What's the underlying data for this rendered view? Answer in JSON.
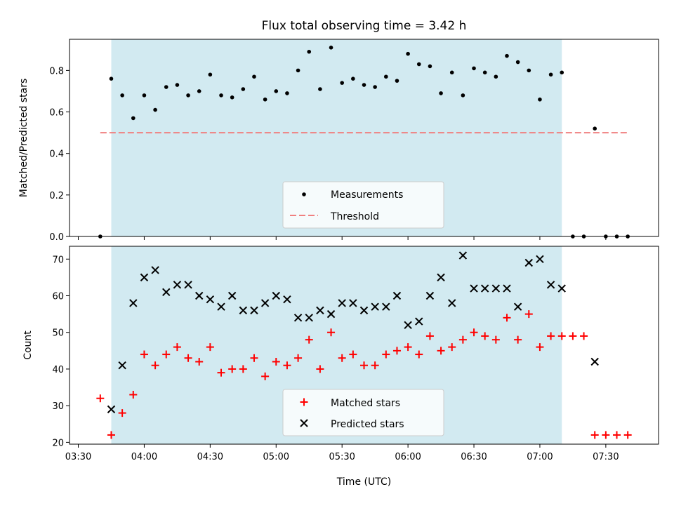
{
  "chart_data": [
    {
      "type": "scatter",
      "title": "Flux total observing time = 3.42 h",
      "xlabel": "",
      "ylabel": "Matched/Predicted stars",
      "xlim": [
        "03:26",
        "07:54"
      ],
      "ylim": [
        0,
        0.95
      ],
      "yticks": [
        0.0,
        0.2,
        0.4,
        0.6,
        0.8
      ],
      "ytick_labels": [
        "0.0",
        "0.2",
        "0.4",
        "0.6",
        "0.8"
      ],
      "shaded_region": {
        "x": [
          "03:45",
          "07:10"
        ],
        "color": "#add8e6"
      },
      "threshold": {
        "name": "Threshold",
        "y": 0.5,
        "x": [
          "03:40",
          "07:40"
        ],
        "color": "#f08080",
        "style": "dashed"
      },
      "legend": {
        "placement": "lower center",
        "entries": [
          "Measurements",
          "Threshold"
        ]
      },
      "series": [
        {
          "name": "Measurements",
          "marker": "dot",
          "color": "#000000",
          "x": [
            "03:40",
            "03:45",
            "03:50",
            "03:55",
            "04:00",
            "04:05",
            "04:10",
            "04:15",
            "04:20",
            "04:25",
            "04:30",
            "04:35",
            "04:40",
            "04:45",
            "04:50",
            "04:55",
            "05:00",
            "05:05",
            "05:10",
            "05:15",
            "05:20",
            "05:25",
            "05:30",
            "05:35",
            "05:40",
            "05:45",
            "05:50",
            "05:55",
            "06:00",
            "06:05",
            "06:10",
            "06:15",
            "06:20",
            "06:25",
            "06:30",
            "06:35",
            "06:40",
            "06:45",
            "06:50",
            "06:55",
            "07:00",
            "07:05",
            "07:10",
            "07:15",
            "07:20",
            "07:25",
            "07:30",
            "07:35",
            "07:40"
          ],
          "y": [
            0.0,
            0.76,
            0.68,
            0.57,
            0.68,
            0.61,
            0.72,
            0.73,
            0.68,
            0.7,
            0.78,
            0.68,
            0.67,
            0.71,
            0.77,
            0.66,
            0.7,
            0.69,
            0.8,
            0.89,
            0.71,
            0.91,
            0.74,
            0.76,
            0.73,
            0.72,
            0.77,
            0.75,
            0.88,
            0.83,
            0.82,
            0.69,
            0.79,
            0.68,
            0.81,
            0.79,
            0.77,
            0.87,
            0.84,
            0.8,
            0.66,
            0.78,
            0.79,
            0.0,
            0.0,
            0.52,
            0.0,
            0.0,
            0.0
          ]
        }
      ]
    },
    {
      "type": "scatter",
      "title": "",
      "xlabel": "Time (UTC)",
      "ylabel": "Count",
      "xlim": [
        "03:26",
        "07:54"
      ],
      "ylim": [
        19.5,
        73.5
      ],
      "xticks": [
        "03:30",
        "04:00",
        "04:30",
        "05:00",
        "05:30",
        "06:00",
        "06:30",
        "07:00",
        "07:30"
      ],
      "yticks": [
        20,
        30,
        40,
        50,
        60,
        70
      ],
      "ytick_labels": [
        "20",
        "30",
        "40",
        "50",
        "60",
        "70"
      ],
      "shaded_region": {
        "x": [
          "03:45",
          "07:10"
        ],
        "color": "#add8e6"
      },
      "legend": {
        "placement": "lower center",
        "entries": [
          "Matched stars",
          "Predicted stars"
        ]
      },
      "series": [
        {
          "name": "Matched stars",
          "marker": "plus",
          "color": "#ff0000",
          "x": [
            "03:40",
            "03:45",
            "03:50",
            "03:55",
            "04:00",
            "04:05",
            "04:10",
            "04:15",
            "04:20",
            "04:25",
            "04:30",
            "04:35",
            "04:40",
            "04:45",
            "04:50",
            "04:55",
            "05:00",
            "05:05",
            "05:10",
            "05:15",
            "05:20",
            "05:25",
            "05:30",
            "05:35",
            "05:40",
            "05:45",
            "05:50",
            "05:55",
            "06:00",
            "06:05",
            "06:10",
            "06:15",
            "06:20",
            "06:25",
            "06:30",
            "06:35",
            "06:40",
            "06:45",
            "06:50",
            "06:55",
            "07:00",
            "07:05",
            "07:10",
            "07:15",
            "07:20",
            "07:25",
            "07:30",
            "07:35",
            "07:40"
          ],
          "y": [
            32,
            22,
            28,
            33,
            44,
            41,
            44,
            46,
            43,
            42,
            46,
            39,
            40,
            40,
            43,
            38,
            42,
            41,
            43,
            48,
            40,
            50,
            43,
            44,
            41,
            41,
            44,
            45,
            46,
            44,
            49,
            45,
            46,
            48,
            50,
            49,
            48,
            54,
            48,
            55,
            46,
            49,
            49,
            49,
            49,
            22,
            22,
            22,
            22
          ]
        },
        {
          "name": "Predicted stars",
          "marker": "x",
          "color": "#000000",
          "x": [
            "03:45",
            "03:50",
            "03:55",
            "04:00",
            "04:05",
            "04:10",
            "04:15",
            "04:20",
            "04:25",
            "04:30",
            "04:35",
            "04:40",
            "04:45",
            "04:50",
            "04:55",
            "05:00",
            "05:05",
            "05:10",
            "05:15",
            "05:20",
            "05:25",
            "05:30",
            "05:35",
            "05:40",
            "05:45",
            "05:50",
            "05:55",
            "06:00",
            "06:05",
            "06:10",
            "06:15",
            "06:20",
            "06:25",
            "06:30",
            "06:35",
            "06:40",
            "06:45",
            "06:50",
            "06:55",
            "07:00",
            "07:05",
            "07:10",
            "07:25"
          ],
          "y": [
            29,
            41,
            58,
            65,
            67,
            61,
            63,
            63,
            60,
            59,
            57,
            60,
            56,
            56,
            58,
            60,
            59,
            54,
            54,
            56,
            55,
            58,
            58,
            56,
            57,
            57,
            60,
            52,
            53,
            60,
            65,
            58,
            71,
            62,
            62,
            62,
            62,
            57,
            69,
            70,
            63,
            62,
            42
          ]
        }
      ]
    }
  ]
}
